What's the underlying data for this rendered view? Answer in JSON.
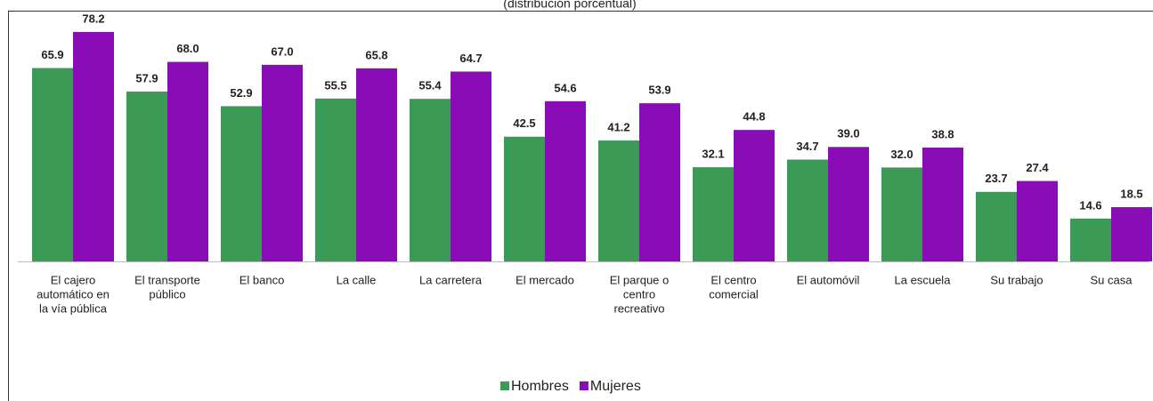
{
  "chart_data": {
    "type": "bar",
    "subtitle": "(distribución porcentual)",
    "categories": [
      [
        "El cajero",
        "automático en",
        "la vía pública"
      ],
      [
        "El transporte",
        "público"
      ],
      [
        "El banco"
      ],
      [
        "La calle"
      ],
      [
        "La carretera"
      ],
      [
        "El mercado"
      ],
      [
        "El parque o",
        "centro",
        "recreativo"
      ],
      [
        "El centro",
        "comercial"
      ],
      [
        "El automóvil"
      ],
      [
        "La escuela"
      ],
      [
        "Su trabajo"
      ],
      [
        "Su casa"
      ]
    ],
    "series": [
      {
        "name": "Hombres",
        "color": "#3b9a56",
        "values": [
          65.9,
          57.9,
          52.9,
          55.5,
          55.4,
          42.5,
          41.2,
          32.1,
          34.7,
          32.0,
          23.7,
          14.6
        ],
        "value_labels": [
          "65.9",
          "57.9",
          "52.9",
          "55.5",
          "55.4",
          "42.5",
          "41.2",
          "32.1",
          "34.7",
          "32.0",
          "23.7",
          "14.6"
        ]
      },
      {
        "name": "Mujeres",
        "color": "#8a0cb6",
        "values": [
          78.2,
          68.0,
          67.0,
          65.8,
          64.7,
          54.6,
          53.9,
          44.8,
          39.0,
          38.8,
          27.4,
          18.5
        ],
        "value_labels": [
          "78.2",
          "68.0",
          "67.0",
          "65.8",
          "64.7",
          "54.6",
          "53.9",
          "44.8",
          "39.0",
          "38.8",
          "27.4",
          "18.5"
        ]
      }
    ],
    "ylim": [
      0,
      80
    ],
    "legend": "bottom"
  }
}
